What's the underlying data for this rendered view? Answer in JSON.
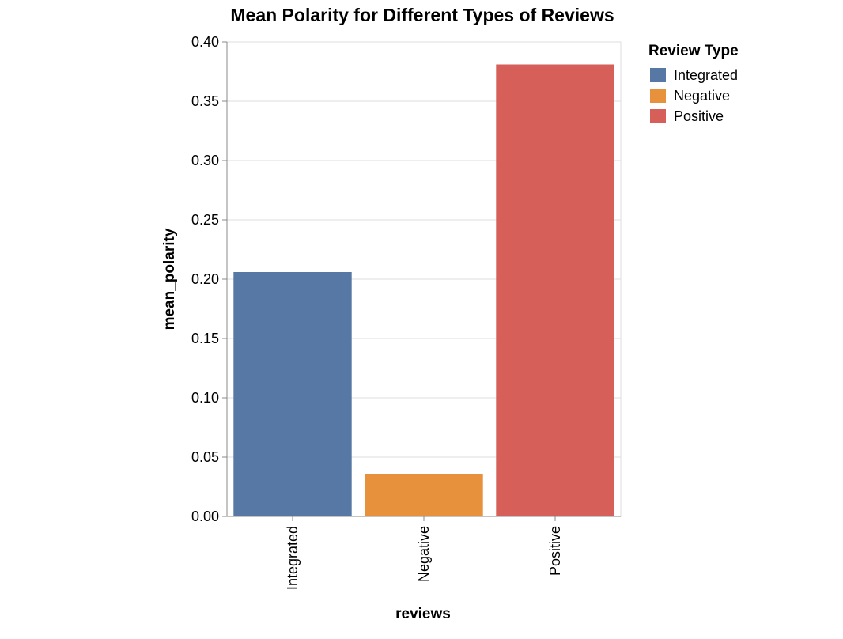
{
  "chart_data": {
    "type": "bar",
    "title": "Mean Polarity for Different Types of Reviews",
    "xlabel": "reviews",
    "ylabel": "mean_polarity",
    "categories": [
      "Integrated",
      "Negative",
      "Positive"
    ],
    "values": [
      0.206,
      0.036,
      0.381
    ],
    "ylim": [
      0,
      0.4
    ],
    "yticks": [
      "0.00",
      "0.05",
      "0.10",
      "0.15",
      "0.20",
      "0.25",
      "0.30",
      "0.35",
      "0.40"
    ],
    "colors": [
      "#5778a4",
      "#e8913c",
      "#d65f5a"
    ],
    "grid": true,
    "legend": {
      "title": "Review Type",
      "placement": "top-right",
      "entries": [
        "Integrated",
        "Negative",
        "Positive"
      ]
    }
  }
}
